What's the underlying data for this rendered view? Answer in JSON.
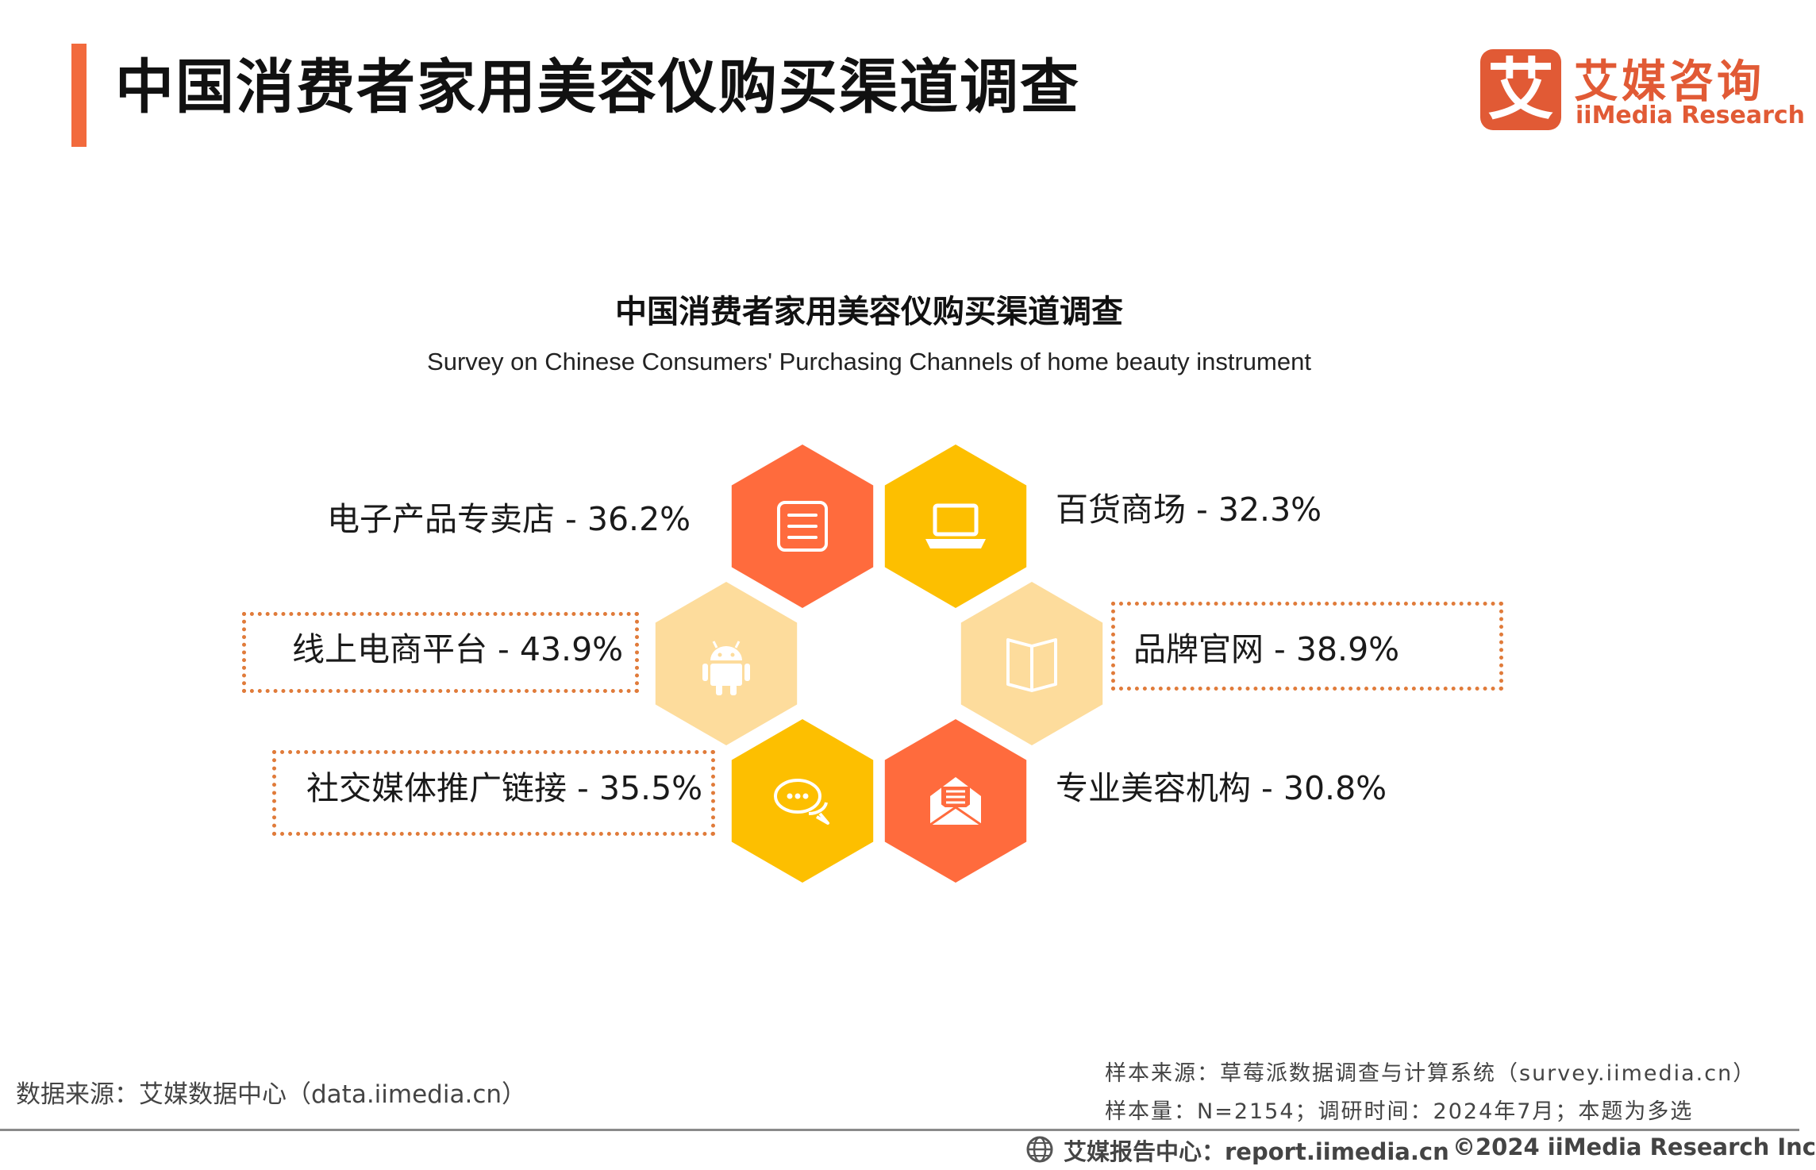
{
  "header": {
    "title": "中国消费者家用美容仪购买渠道调查",
    "logo_cn": "艾媒咨询",
    "logo_en": "iiMedia Research",
    "logo_mark": "艾"
  },
  "chart_data": {
    "type": "hexagon-infographic",
    "title": "中国消费者家用美容仪购买渠道调查",
    "subtitle": "Survey on Chinese Consumers' Purchasing Channels of home beauty instrument",
    "unit": "%",
    "items": [
      {
        "label": "电子产品专卖店",
        "value": 36.2,
        "value_text": "36.2%",
        "icon": "document-icon",
        "color": "#ff6b3d",
        "highlighted": false
      },
      {
        "label": "百货商场",
        "value": 32.3,
        "value_text": "32.3%",
        "icon": "laptop-icon",
        "color": "#fdbf00",
        "highlighted": false
      },
      {
        "label": "线上电商平台",
        "value": 43.9,
        "value_text": "43.9%",
        "icon": "android-icon",
        "color": "#fddc9c",
        "highlighted": true
      },
      {
        "label": "品牌官网",
        "value": 38.9,
        "value_text": "38.9%",
        "icon": "book-icon",
        "color": "#fddc9c",
        "highlighted": true
      },
      {
        "label": "社交媒体推广链接",
        "value": 35.5,
        "value_text": "35.5%",
        "icon": "chat-icon",
        "color": "#fdbf00",
        "highlighted": true
      },
      {
        "label": "专业美容机构",
        "value": 30.8,
        "value_text": "30.8%",
        "icon": "mail-icon",
        "color": "#ff6b3d",
        "highlighted": false
      }
    ]
  },
  "footer": {
    "source_left": "数据来源：艾媒数据中心（data.iimedia.cn）",
    "source_right_1": "样本来源：草莓派数据调查与计算系统（survey.iimedia.cn）",
    "source_right_2": "样本量：N=2154；调研时间：2024年7月；本题为多选",
    "report_center": "艾媒报告中心：report.iimedia.cn",
    "copyright": "©2024 iiMedia Research Inc"
  }
}
